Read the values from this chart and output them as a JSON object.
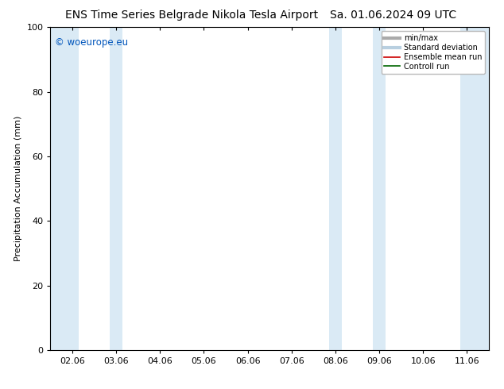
{
  "title": "ENS Time Series Belgrade Nikola Tesla Airport      Sa. 01.06.2024 09 UTC",
  "title_left": "ENS Time Series Belgrade Nikola Tesla Airport",
  "title_right": "Sa. 01.06.2024 09 UTC",
  "ylabel": "Precipitation Accumulation (mm)",
  "watermark": "© woeurope.eu",
  "ylim": [
    0,
    100
  ],
  "xtick_labels": [
    "02.06",
    "03.06",
    "04.06",
    "05.06",
    "06.06",
    "07.06",
    "08.06",
    "09.06",
    "10.06",
    "11.06"
  ],
  "xtick_positions": [
    0,
    1,
    2,
    3,
    4,
    5,
    6,
    7,
    8,
    9
  ],
  "xlim": [
    -0.5,
    9.5
  ],
  "ytick_positions": [
    0,
    20,
    40,
    60,
    80,
    100
  ],
  "shaded_bands": [
    {
      "x_start": -0.5,
      "x_end": -0.2,
      "color": "#daeaf7"
    },
    {
      "x_start": 0.8,
      "x_end": 1.2,
      "color": "#daeaf7"
    },
    {
      "x_start": 5.8,
      "x_end": 6.2,
      "color": "#daeaf7"
    },
    {
      "x_start": 6.8,
      "x_end": 7.2,
      "color": "#daeaf7"
    },
    {
      "x_start": 8.8,
      "x_end": 9.2,
      "color": "#daeaf7"
    },
    {
      "x_start": 9.2,
      "x_end": 9.5,
      "color": "#daeaf7"
    }
  ],
  "legend_entries": [
    {
      "label": "min/max",
      "color": "#aaaaaa",
      "linestyle": "-",
      "linewidth": 3
    },
    {
      "label": "Standard deviation",
      "color": "#b8cfe0",
      "linestyle": "-",
      "linewidth": 3
    },
    {
      "label": "Ensemble mean run",
      "color": "#cc0000",
      "linestyle": "-",
      "linewidth": 1.2
    },
    {
      "label": "Controll run",
      "color": "#006600",
      "linestyle": "-",
      "linewidth": 1.2
    }
  ],
  "watermark_color": "#0055bb",
  "background_color": "#ffffff",
  "title_fontsize": 10,
  "axis_label_fontsize": 8,
  "tick_fontsize": 8
}
